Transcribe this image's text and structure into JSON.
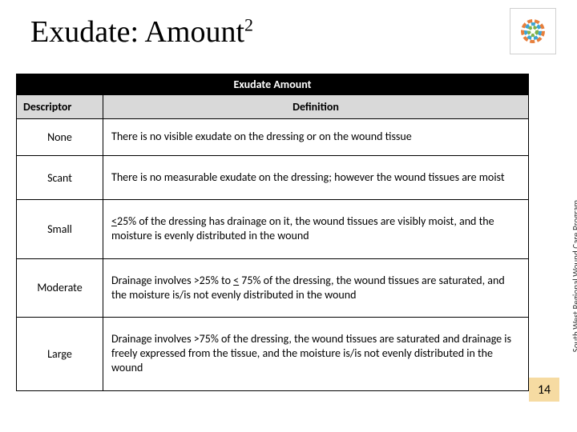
{
  "title_main": "Exudate:  Amount",
  "title_sup": "2",
  "sidetext": "South West Regional Wound Care Program",
  "page_number": "14",
  "table": {
    "header_main": "Exudate Amount",
    "col_descriptor": "Descriptor",
    "col_definition": "Definition",
    "rows": [
      {
        "descriptor": "None",
        "definition": "There is no visible exudate on the dressing or on the wound tissue"
      },
      {
        "descriptor": "Scant",
        "definition": "There is no measurable exudate on the dressing; however the wound tissues are moist"
      },
      {
        "descriptor": "Small",
        "definition_html": "<u>&lt;</u>25% of the dressing has drainage on it, the wound tissues are visibly moist, and the moisture is evenly distributed in the wound"
      },
      {
        "descriptor": "Moderate",
        "definition_html": "Drainage involves &gt;25% to <u>&lt;</u> 75% of the dressing, the wound tissues are saturated, and the moisture is/is not evenly distributed in the wound"
      },
      {
        "descriptor": "Large",
        "definition": "Drainage involves >75% of the dressing, the wound tissues are saturated and drainage is freely expressed from the tissue, and the moisture is/is not evenly distributed in the wound"
      }
    ]
  }
}
